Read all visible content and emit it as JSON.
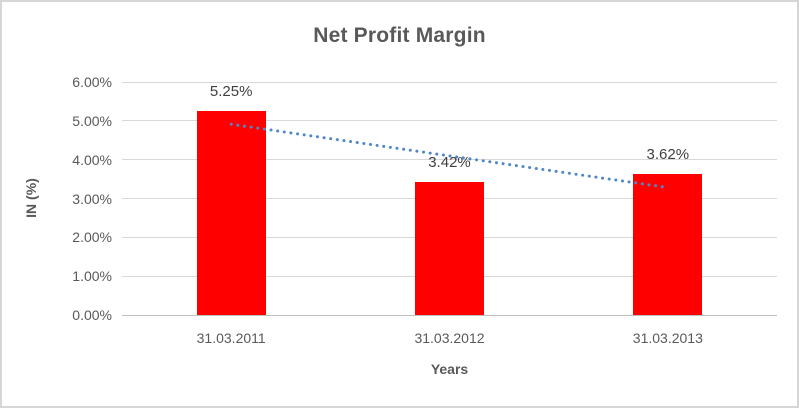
{
  "window": {
    "background": "#ffffff",
    "border_color": "#d6d6d6"
  },
  "chart_data": {
    "type": "bar",
    "title": "Net Profit Margin",
    "xlabel": "Years",
    "ylabel": "IN (%)",
    "categories": [
      "31.03.2011",
      "31.03.2012",
      "31.03.2013"
    ],
    "values": [
      5.25,
      3.42,
      3.62
    ],
    "data_labels": [
      "5.25%",
      "3.42%",
      "3.62%"
    ],
    "ylim": [
      0,
      6
    ],
    "ytick_step": 1,
    "ytick_labels": [
      "0.00%",
      "1.00%",
      "2.00%",
      "3.00%",
      "4.00%",
      "5.00%",
      "6.00%"
    ],
    "grid": true,
    "legend": "none",
    "bar_color": "#ff0000",
    "trendline": {
      "type": "linear",
      "style": "dotted",
      "color": "#4e87c8"
    },
    "colors": {
      "title_text": "#595959",
      "tick_text": "#595959",
      "data_label_text": "#404040",
      "gridline": "#d9d9d9",
      "axis_line": "#bfbfbf"
    }
  }
}
